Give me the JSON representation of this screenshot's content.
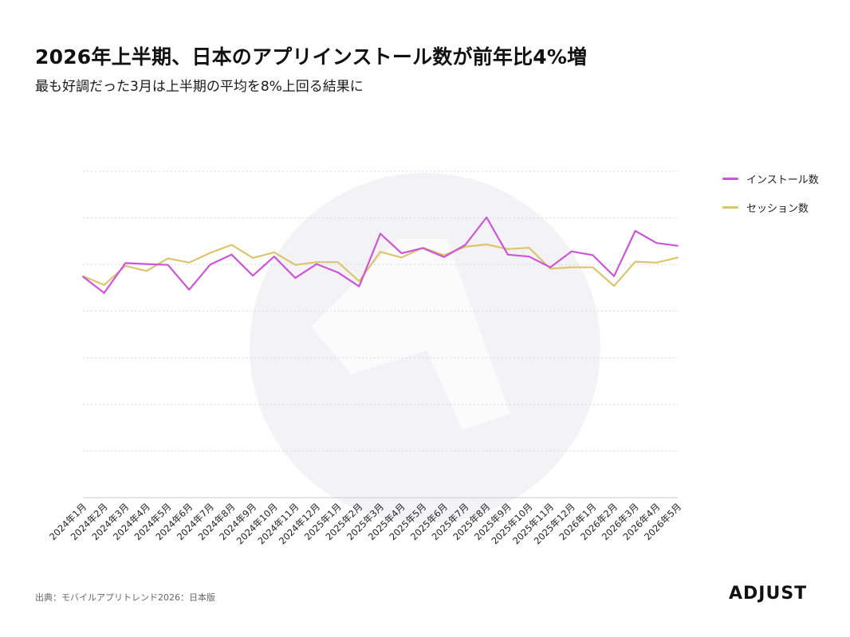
{
  "title": "2026年上半期、日本のアプリインストール数が前年比4%増",
  "subtitle": "最も好調だった3月は上半期の平均を8%上回る結果に",
  "source": "出典：モバイルアプリトレンド2026：日本版",
  "logo_text": "ADJUST",
  "chart_data": {
    "type": "line",
    "categories": [
      "2024年1月",
      "2024年2月",
      "2024年3月",
      "2024年4月",
      "2024年5月",
      "2024年6月",
      "2024年7月",
      "2024年8月",
      "2024年9月",
      "2024年10月",
      "2024年11月",
      "2024年12月",
      "2025年1月",
      "2025年2月",
      "2025年3月",
      "2025年4月",
      "2025年5月",
      "2025年6月",
      "2025年7月",
      "2025年8月",
      "2025年9月",
      "2025年10月",
      "2025年11月",
      "2025年12月",
      "2026年1月",
      "2026年2月",
      "2026年3月",
      "2026年4月",
      "2026年5月"
    ],
    "ylim": [
      0,
      7
    ],
    "grid": true,
    "legend_position": "top-right",
    "series": [
      {
        "name": "インストール数",
        "color": "#cc55d8",
        "values": [
          4.74,
          4.39,
          5.03,
          5.01,
          4.99,
          4.46,
          5.0,
          5.21,
          4.76,
          5.17,
          4.71,
          5.01,
          4.83,
          4.53,
          5.66,
          5.24,
          5.35,
          5.16,
          5.42,
          6.01,
          5.21,
          5.17,
          4.94,
          5.28,
          5.2,
          4.75,
          5.72,
          5.46,
          5.4
        ]
      },
      {
        "name": "セッション数",
        "color": "#dcc56c",
        "values": [
          4.75,
          4.56,
          4.97,
          4.86,
          5.13,
          5.04,
          5.25,
          5.42,
          5.14,
          5.26,
          4.99,
          5.05,
          5.05,
          4.64,
          5.27,
          5.15,
          5.36,
          5.2,
          5.38,
          5.43,
          5.33,
          5.36,
          4.91,
          4.94,
          4.94,
          4.54,
          5.06,
          5.04,
          5.15
        ]
      }
    ]
  }
}
